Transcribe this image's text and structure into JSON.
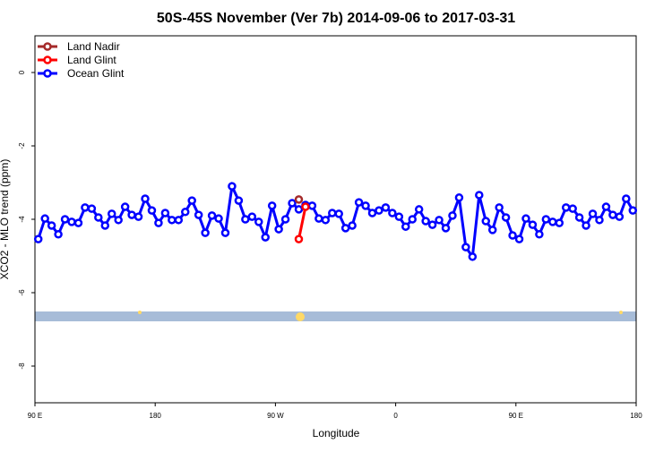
{
  "chart_data": {
    "type": "line",
    "title": "50S-45S November (Ver 7b)   2014-09-06 to 2017-03-31",
    "x_label": "Longitude",
    "y_label": "XCO2 - MLO trend (ppm)",
    "xlim": [
      90,
      540
    ],
    "ylim": [
      -9,
      1
    ],
    "xticks": [
      {
        "value": 90,
        "label": "90 E"
      },
      {
        "value": 180,
        "label": "180"
      },
      {
        "value": 270,
        "label": "90 W"
      },
      {
        "value": 360,
        "label": "0"
      },
      {
        "value": 450,
        "label": "90 E"
      },
      {
        "value": 540,
        "label": "180"
      }
    ],
    "yticks": [
      0,
      -2,
      -4,
      -6,
      -8
    ],
    "legend": "top-left",
    "series": [
      {
        "name": "Land Nadir",
        "color": "#a52a2a",
        "x": [
          287.5
        ],
        "values": [
          -3.46
        ]
      },
      {
        "name": "Land Glint",
        "color": "#ff0000",
        "x": [
          287.5,
          292.5
        ],
        "values": [
          -4.54,
          -3.66
        ]
      },
      {
        "name": "Ocean Glint",
        "color": "#0000ff",
        "x": [
          92.5,
          97.5,
          102.5,
          107.5,
          112.5,
          117.5,
          122.5,
          127.5,
          132.5,
          137.5,
          142.5,
          147.5,
          152.5,
          157.5,
          162.5,
          167.5,
          172.5,
          177.5,
          182.5,
          187.5,
          192.5,
          197.5,
          202.5,
          207.5,
          212.5,
          217.5,
          222.5,
          227.5,
          232.5,
          237.5,
          242.5,
          247.5,
          252.5,
          257.5,
          262.5,
          267.5,
          272.5,
          277.5,
          282.5,
          287.5,
          292.5,
          297.5,
          302.5,
          307.5,
          312.5,
          317.5,
          322.5,
          327.5,
          332.5,
          337.5,
          342.5,
          347.5,
          352.5,
          357.5,
          362.5,
          367.5,
          372.5,
          377.5,
          382.5,
          387.5,
          392.5,
          397.5,
          402.5,
          407.5,
          412.5,
          417.5,
          422.5,
          427.5,
          432.5,
          437.5,
          442.5,
          447.5,
          452.5,
          457.5,
          462.5,
          467.5,
          472.5,
          477.5,
          482.5,
          487.5,
          492.5,
          497.5,
          502.5,
          507.5,
          512.5,
          517.5,
          522.5,
          527.5,
          532.5,
          537.5
        ],
        "values": [
          -4.54,
          -3.98,
          -4.17,
          -4.41,
          -4.0,
          -4.07,
          -4.1,
          -3.68,
          -3.71,
          -3.95,
          -4.17,
          -3.85,
          -4.02,
          -3.66,
          -3.88,
          -3.93,
          -3.44,
          -3.76,
          -4.1,
          -3.83,
          -4.02,
          -4.02,
          -3.8,
          -3.49,
          -3.88,
          -4.37,
          -3.9,
          -3.98,
          -4.37,
          -3.1,
          -3.49,
          -4.0,
          -3.93,
          -4.07,
          -4.49,
          -3.63,
          -4.27,
          -4.0,
          -3.56,
          -3.73,
          -3.61,
          -3.63,
          -3.98,
          -4.02,
          -3.83,
          -3.85,
          -4.24,
          -4.17,
          -3.54,
          -3.63,
          -3.83,
          -3.76,
          -3.68,
          -3.83,
          -3.93,
          -4.2,
          -4.0,
          -3.73,
          -4.05,
          -4.15,
          -4.02,
          -4.24,
          -3.9,
          -3.41,
          -4.76,
          -5.02,
          -3.34,
          -4.05,
          -4.29,
          -3.68,
          -3.95,
          -4.44,
          -4.54,
          -3.98,
          -4.15,
          -4.41,
          -4.0,
          -4.07,
          -4.1,
          -3.68,
          -3.71,
          -3.95,
          -4.17,
          -3.85,
          -4.02,
          -3.66,
          -3.88,
          -3.93,
          -3.44,
          -3.76
        ]
      }
    ]
  }
}
